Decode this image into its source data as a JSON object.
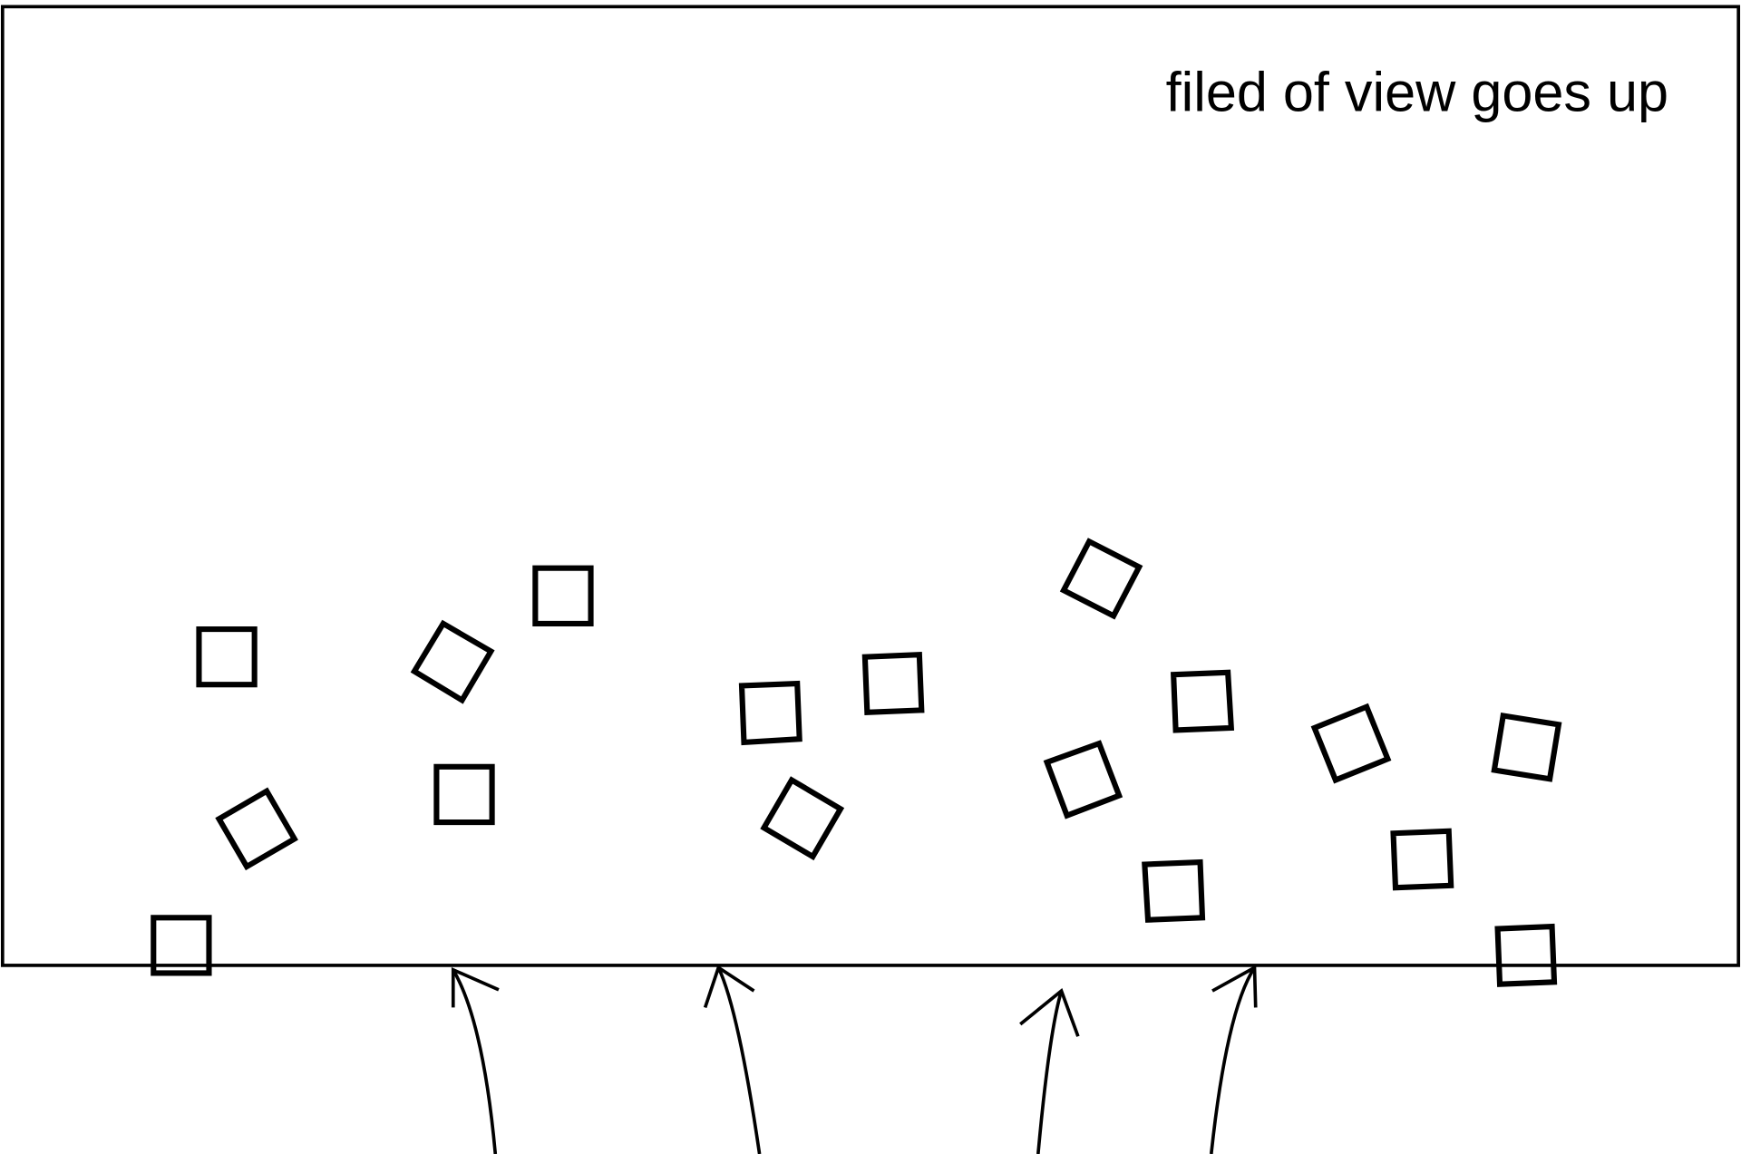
{
  "diagram": {
    "label": "filed of view goes up",
    "stroke_color": "#000000",
    "background_color": "#ffffff",
    "square_count": 17,
    "arrow_count": 4,
    "arrow_direction": "up"
  }
}
